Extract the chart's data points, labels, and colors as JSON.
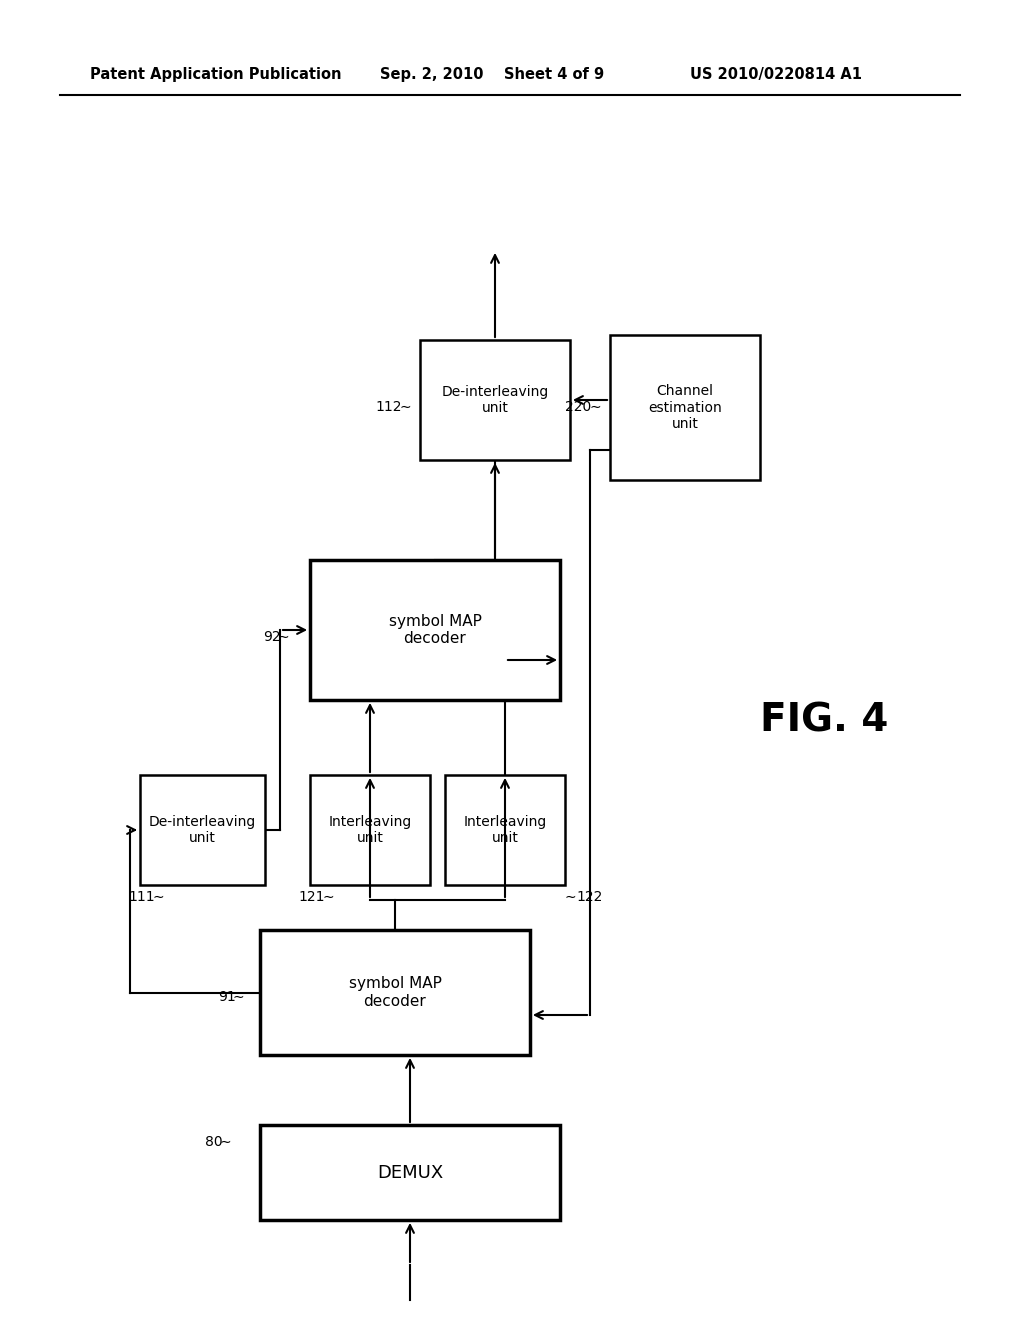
{
  "bg_color": "#ffffff",
  "header_left": "Patent Application Publication",
  "header_mid": "Sep. 2, 2010   Sheet 4 of 9",
  "header_right": "US 2010/0220814 A1",
  "fig_label": "FIG. 4",
  "text_color": "#000000",
  "line_color": "#000000"
}
